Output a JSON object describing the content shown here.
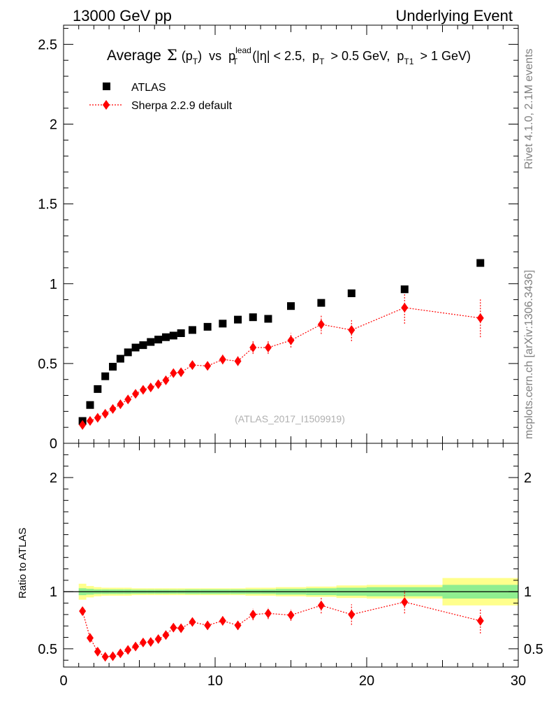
{
  "header": {
    "left": "13000 GeV pp",
    "right": "Underlying Event"
  },
  "side_labels": {
    "rivet": "Rivet 4.1.0,  2.1M events",
    "mcplots": "mcplots.cern.ch [arXiv:1306.3436]"
  },
  "chart_data": {
    "type": "scatter",
    "title_parts": {
      "average": "Average",
      "sigma": "Σ",
      "p": "p",
      "T": "T",
      "lead": "lead",
      "T1": "T1",
      "paren_open": "(",
      "paren_close": ")",
      "vs": "vs",
      "cut_eta": "(|η| < 2.5,",
      "cut_pt": "> 0.5 GeV,",
      "cut_pt1": "> 1 GeV)"
    },
    "watermark": "(ATLAS_2017_I1509919)",
    "ratio_ylabel": "Ratio to ATLAS",
    "legend": [
      {
        "name": "ATLAS",
        "marker": "square",
        "color": "#000000"
      },
      {
        "name": "Sherpa 2.2.9 default",
        "marker": "diamond",
        "color": "#ff0000"
      }
    ],
    "xlim": [
      0,
      30
    ],
    "ylim_main": [
      0,
      2.62
    ],
    "ylim_ratio": [
      0.34,
      2.3
    ],
    "x_ticks": [
      0,
      10,
      20,
      30
    ],
    "x_tick_labels": [
      "0",
      "10",
      "20",
      "30"
    ],
    "y_ticks_main": [
      0,
      0.5,
      1,
      1.5,
      2,
      2.5
    ],
    "y_tick_labels_main": [
      "0",
      "0.5",
      "1",
      "1.5",
      "2",
      "2.5"
    ],
    "y_ticks_ratio": [
      0.5,
      1,
      2
    ],
    "y_tick_labels_ratio": [
      "0.5",
      "1",
      "2"
    ],
    "series": [
      {
        "name": "ATLAS",
        "x": [
          1.25,
          1.75,
          2.25,
          2.75,
          3.25,
          3.75,
          4.25,
          4.75,
          5.25,
          5.75,
          6.25,
          6.75,
          7.25,
          7.75,
          8.5,
          9.5,
          10.5,
          11.5,
          12.5,
          13.5,
          15,
          17,
          19,
          22.5,
          27.5
        ],
        "y": [
          0.14,
          0.24,
          0.34,
          0.42,
          0.48,
          0.53,
          0.57,
          0.6,
          0.615,
          0.635,
          0.65,
          0.665,
          0.675,
          0.69,
          0.71,
          0.73,
          0.75,
          0.775,
          0.79,
          0.78,
          0.86,
          0.88,
          0.94,
          0.965,
          1.13
        ]
      },
      {
        "name": "Sherpa 2.2.9 default",
        "x": [
          1.25,
          1.75,
          2.25,
          2.75,
          3.25,
          3.75,
          4.25,
          4.75,
          5.25,
          5.75,
          6.25,
          6.75,
          7.25,
          7.75,
          8.5,
          9.5,
          10.5,
          11.5,
          12.5,
          13.5,
          15,
          17,
          19,
          22.5,
          27.5
        ],
        "y": [
          0.115,
          0.14,
          0.16,
          0.185,
          0.215,
          0.245,
          0.275,
          0.31,
          0.335,
          0.35,
          0.37,
          0.395,
          0.44,
          0.445,
          0.49,
          0.485,
          0.525,
          0.515,
          0.6,
          0.6,
          0.645,
          0.745,
          0.71,
          0.85,
          0.785
        ],
        "yerr": [
          0.01,
          0.01,
          0.01,
          0.01,
          0.01,
          0.01,
          0.01,
          0.015,
          0.015,
          0.015,
          0.015,
          0.015,
          0.02,
          0.02,
          0.025,
          0.025,
          0.03,
          0.03,
          0.04,
          0.04,
          0.045,
          0.06,
          0.07,
          0.1,
          0.12
        ],
        "ratio": [
          0.83,
          0.595,
          0.475,
          0.43,
          0.435,
          0.46,
          0.49,
          0.52,
          0.555,
          0.56,
          0.585,
          0.62,
          0.685,
          0.68,
          0.735,
          0.705,
          0.745,
          0.705,
          0.8,
          0.81,
          0.795,
          0.88,
          0.8,
          0.91,
          0.745
        ],
        "ratio_err": [
          0.02,
          0.02,
          0.02,
          0.02,
          0.02,
          0.02,
          0.02,
          0.02,
          0.02,
          0.02,
          0.02,
          0.025,
          0.025,
          0.03,
          0.03,
          0.035,
          0.04,
          0.04,
          0.05,
          0.05,
          0.05,
          0.07,
          0.09,
          0.1,
          0.11
        ]
      }
    ],
    "ratio_bands": {
      "x_edges": [
        1,
        1.5,
        2,
        2.5,
        3,
        3.5,
        4,
        4.5,
        5,
        5.5,
        6,
        6.5,
        7,
        7.5,
        8,
        9,
        10,
        11,
        12,
        13,
        14,
        16,
        18,
        20,
        25,
        30
      ],
      "inner": [
        0.03,
        0.025,
        0.02,
        0.02,
        0.02,
        0.02,
        0.02,
        0.018,
        0.018,
        0.018,
        0.018,
        0.018,
        0.018,
        0.018,
        0.02,
        0.02,
        0.02,
        0.02,
        0.02,
        0.02,
        0.025,
        0.03,
        0.035,
        0.04,
        0.06
      ],
      "outer": [
        0.07,
        0.05,
        0.04,
        0.035,
        0.035,
        0.035,
        0.035,
        0.03,
        0.03,
        0.03,
        0.03,
        0.03,
        0.03,
        0.03,
        0.03,
        0.03,
        0.03,
        0.03,
        0.035,
        0.035,
        0.04,
        0.045,
        0.055,
        0.06,
        0.12
      ],
      "inner_color": "#90ee90",
      "outer_color": "#ffff8c"
    }
  }
}
